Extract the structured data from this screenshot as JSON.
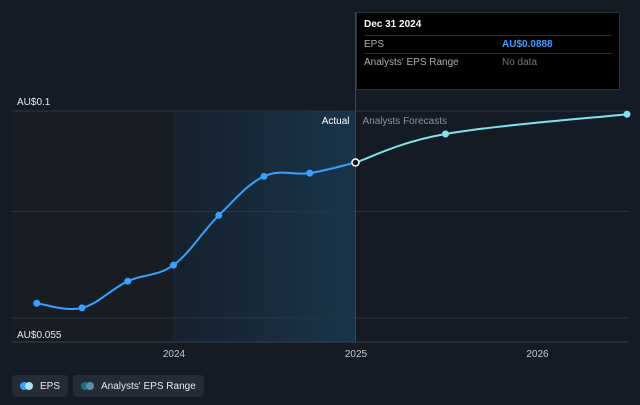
{
  "chart_data": {
    "type": "line",
    "y_top_label": "AU$0.1",
    "y_bottom_label": "AU$0.055",
    "ylim": [
      0.055,
      0.1
    ],
    "x_ticks": [
      "2024",
      "2025",
      "2026"
    ],
    "regions": {
      "actual_label": "Actual",
      "forecast_label": "Analysts Forecasts"
    },
    "series": [
      {
        "name": "EPS",
        "color": "#3aa0ff",
        "points": [
          {
            "x": "2023-03-31",
            "y": 0.0582
          },
          {
            "x": "2023-06-30",
            "y": 0.0572
          },
          {
            "x": "2023-09-30",
            "y": 0.063
          },
          {
            "x": "2023-12-31",
            "y": 0.0665
          },
          {
            "x": "2024-03-31",
            "y": 0.0773
          },
          {
            "x": "2024-06-30",
            "y": 0.0858
          },
          {
            "x": "2024-09-30",
            "y": 0.0865
          },
          {
            "x": "2024-12-31",
            "y": 0.0888
          }
        ]
      },
      {
        "name": "Analysts Forecasts",
        "color": "#7fe3e8",
        "points": [
          {
            "x": "2024-12-31",
            "y": 0.0888
          },
          {
            "x": "2025-06-30",
            "y": 0.095
          },
          {
            "x": "2026-06-30",
            "y": 0.0993
          }
        ]
      }
    ],
    "legend": [
      {
        "label": "EPS",
        "colors": [
          "#3aa0ff",
          "#a7e4ff"
        ]
      },
      {
        "label": "Analysts' EPS Range",
        "colors": [
          "#1f6f86",
          "#5b8fa8"
        ]
      }
    ],
    "legend_position": "bottom-left"
  },
  "tooltip": {
    "date": "Dec 31 2024",
    "rows": [
      {
        "label": "EPS",
        "value": "AU$0.0888"
      },
      {
        "label": "Analysts' EPS Range",
        "value": "No data"
      }
    ]
  }
}
